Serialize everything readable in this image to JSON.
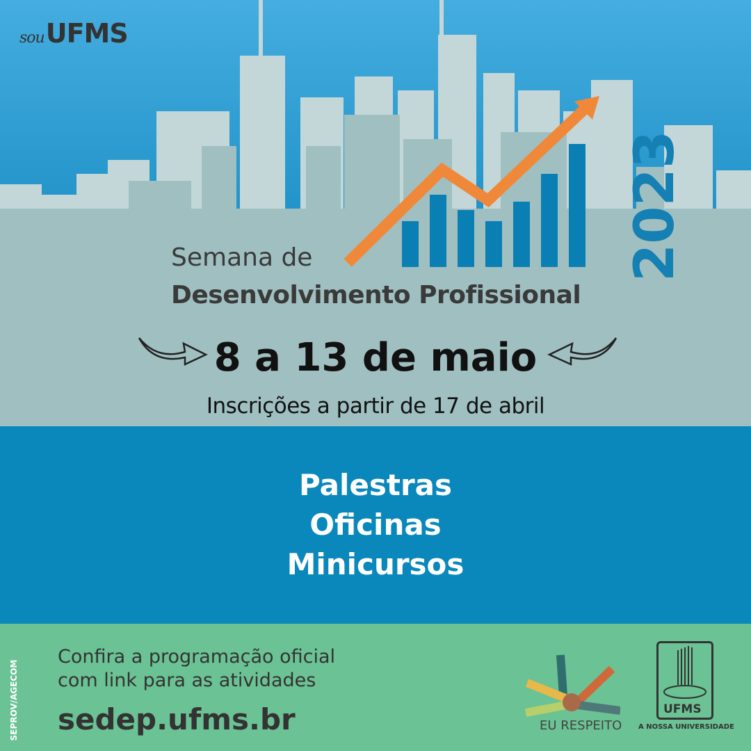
{
  "logo": {
    "prefix": "sou",
    "name": "UFMS"
  },
  "year": "2023",
  "title": {
    "line1": "Semana de",
    "line2": "Desenvolvimento Profissional"
  },
  "dates": "8 a 13 de maio",
  "registration": "Inscrições a partir de 17 de abril",
  "activities": [
    "Palestras",
    "Oficinas",
    "Minicursos"
  ],
  "footer": {
    "credit": "SEPROV/AGECOM",
    "text_line1": "Confira a programação oficial",
    "text_line2": "com link para as atividades",
    "url": "sedep.ufms.br",
    "eu_respeito": "EU RESPEITO",
    "ufms": "UFMS",
    "ufms_tagline": "A NOSSA UNIVERSIDADE"
  },
  "colors": {
    "band": "#0a88bb",
    "footer": "#6bc294",
    "accent_arrow": "#f0883a",
    "bars": "#0a7fb3"
  }
}
